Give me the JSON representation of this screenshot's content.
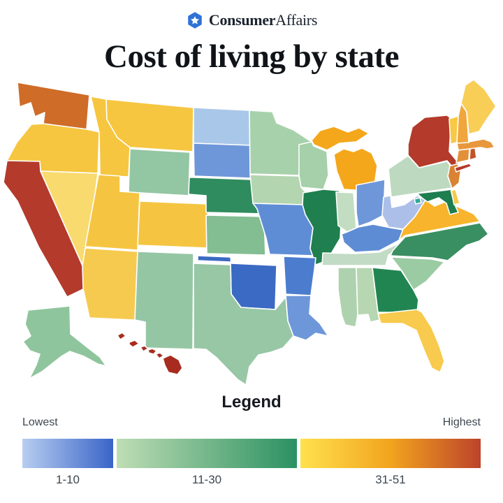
{
  "header": {
    "logo": {
      "bold": "Consumer",
      "regular": "Affairs",
      "icon": "hexagon-star",
      "icon_color": "#2F72D6",
      "star_color": "#FFFFFF"
    }
  },
  "title": "Cost of living by state",
  "legend": {
    "heading": "Legend",
    "low_label": "Lowest",
    "high_label": "Highest",
    "ranges": [
      {
        "label": "1-10",
        "from": "#B7CEF0",
        "to": "#3A64C8"
      },
      {
        "label": "11-30",
        "from": "#BFDDB4",
        "to": "#2B9162"
      },
      {
        "label": "31-51",
        "from": "#FFE14E",
        "mid": "#F2A41E",
        "to": "#BC432B"
      }
    ]
  },
  "map": {
    "states": [
      {
        "id": "WA",
        "name": "Washington",
        "color": "#CE6C28"
      },
      {
        "id": "OR",
        "name": "Oregon",
        "color": "#F6C640"
      },
      {
        "id": "CA",
        "name": "California",
        "color": "#B43A2B"
      },
      {
        "id": "NV",
        "name": "Nevada",
        "color": "#F8DA6E"
      },
      {
        "id": "ID",
        "name": "Idaho",
        "color": "#F6C640"
      },
      {
        "id": "MT",
        "name": "Montana",
        "color": "#F6C640"
      },
      {
        "id": "WY",
        "name": "Wyoming",
        "color": "#93C6A3"
      },
      {
        "id": "UT",
        "name": "Utah",
        "color": "#F5C542"
      },
      {
        "id": "CO",
        "name": "Colorado",
        "color": "#F5C542"
      },
      {
        "id": "AZ",
        "name": "Arizona",
        "color": "#F6CA4E"
      },
      {
        "id": "NM",
        "name": "New Mexico",
        "color": "#95C6A4"
      },
      {
        "id": "AK",
        "name": "Alaska",
        "color": "#8FC59D"
      },
      {
        "id": "HI",
        "name": "Hawaii",
        "color": "#A72C1F"
      },
      {
        "id": "ND",
        "name": "North Dakota",
        "color": "#A9C7E9"
      },
      {
        "id": "SD",
        "name": "South Dakota",
        "color": "#6E97D9"
      },
      {
        "id": "NE",
        "name": "Nebraska",
        "color": "#2E8C5E"
      },
      {
        "id": "KS",
        "name": "Kansas",
        "color": "#83BD92"
      },
      {
        "id": "OK",
        "name": "Oklahoma",
        "color": "#3B6AC4"
      },
      {
        "id": "TX",
        "name": "Texas",
        "color": "#97C7A5"
      },
      {
        "id": "MN",
        "name": "Minnesota",
        "color": "#A7D1AB"
      },
      {
        "id": "IA",
        "name": "Iowa",
        "color": "#B3D5B0"
      },
      {
        "id": "MO",
        "name": "Missouri",
        "color": "#5F8DD5"
      },
      {
        "id": "WI",
        "name": "Wisconsin",
        "color": "#A5D0A9"
      },
      {
        "id": "IL",
        "name": "Illinois",
        "color": "#1F7F4E"
      },
      {
        "id": "MI",
        "name": "Michigan",
        "color": "#F4A71B"
      },
      {
        "id": "IN",
        "name": "Indiana",
        "color": "#C3DDC2"
      },
      {
        "id": "OH",
        "name": "Ohio",
        "color": "#6E97D9"
      },
      {
        "id": "KY",
        "name": "Kentucky",
        "color": "#5E8CD4"
      },
      {
        "id": "TN",
        "name": "Tennessee",
        "color": "#C1DBC4"
      },
      {
        "id": "MS",
        "name": "Mississippi",
        "color": "#AFD2AE"
      },
      {
        "id": "AL",
        "name": "Alabama",
        "color": "#B7D6B2"
      },
      {
        "id": "GA",
        "name": "Georgia",
        "color": "#218552"
      },
      {
        "id": "FL",
        "name": "Florida",
        "color": "#F8CA4D"
      },
      {
        "id": "SC",
        "name": "South Carolina",
        "color": "#9BCBA3"
      },
      {
        "id": "NC",
        "name": "North Carolina",
        "color": "#398F62"
      },
      {
        "id": "VA",
        "name": "Virginia",
        "color": "#F7B42C"
      },
      {
        "id": "WV",
        "name": "West Virginia",
        "color": "#ABBFE8"
      },
      {
        "id": "MD",
        "name": "Maryland",
        "color": "#1E7E50"
      },
      {
        "id": "DE",
        "name": "Delaware",
        "color": "#F7C94A"
      },
      {
        "id": "PA",
        "name": "Pennsylvania",
        "color": "#BDDAC0"
      },
      {
        "id": "NJ",
        "name": "New Jersey",
        "color": "#D98333"
      },
      {
        "id": "NY",
        "name": "New York",
        "color": "#B43A2B"
      },
      {
        "id": "CT",
        "name": "Connecticut",
        "color": "#E2913A"
      },
      {
        "id": "RI",
        "name": "Rhode Island",
        "color": "#C2542A"
      },
      {
        "id": "MA",
        "name": "Massachusetts",
        "color": "#E8973C"
      },
      {
        "id": "VT",
        "name": "Vermont",
        "color": "#F7C945"
      },
      {
        "id": "NH",
        "name": "New Hampshire",
        "color": "#F0A63C"
      },
      {
        "id": "ME",
        "name": "Maine",
        "color": "#F8CE57"
      },
      {
        "id": "AR",
        "name": "Arkansas",
        "color": "#4C7CCE"
      },
      {
        "id": "LA",
        "name": "Louisiana",
        "color": "#6E97D9"
      },
      {
        "id": "DC",
        "name": "District of Columbia",
        "color": "#2FA893"
      }
    ]
  }
}
